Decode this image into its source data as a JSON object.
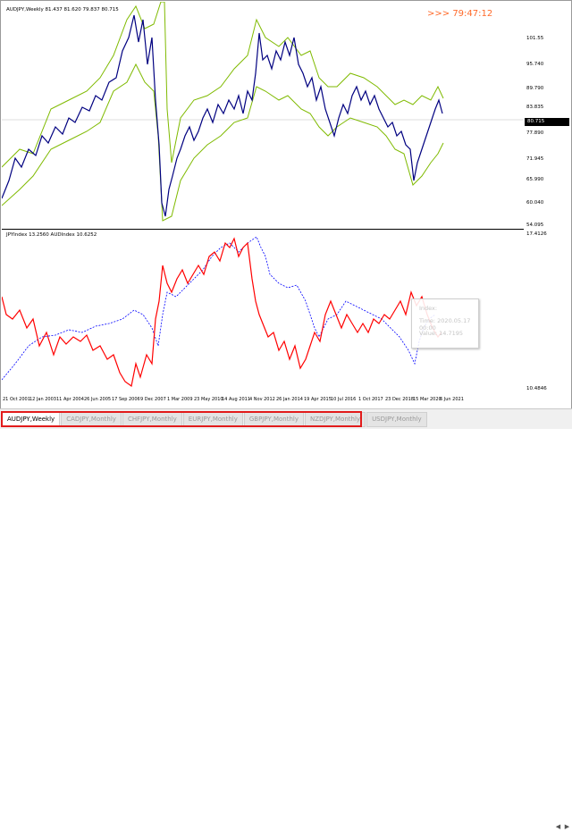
{
  "main_chart": {
    "title": "AUDJPY,Weekly  81.437 81.620 79.837 80.715",
    "timer": ">>> 79:47:12",
    "price_labels": [
      "101.55",
      "95.740",
      "89.790",
      "83.835",
      "77.890",
      "71.945",
      "65.990",
      "60.040",
      "54.095"
    ],
    "current_price": "80.715"
  },
  "indicator": {
    "title": "JPYIndex 13.2560  AUDIndex 10.6252",
    "labels": [
      "17.4126",
      "10.4846"
    ]
  },
  "dates": [
    "21 Oct 2001",
    "12 Jan 2003",
    "11 Apr 2004",
    "26 Jun 2005",
    "17 Sep 2006",
    "9 Dec 2007",
    "1 Mar 2009",
    "23 May 2010",
    "14 Aug 2011",
    "4 Nov 2012",
    "26 Jan 2014",
    "19 Apr 2015",
    "10 Jul 2016",
    "1 Oct 2017",
    "23 Dec 2018",
    "15 Mar 2020",
    "6 Jun 2021"
  ],
  "tooltip": {
    "index_label": "Index:",
    "time": "Time: 2020.05.17 00:00",
    "value": "Value: 14.7195"
  },
  "tabs": [
    "AUDJPY,Weekly",
    "CADJPY,Monthly",
    "CHFJPY,Monthly",
    "EURJPY,Monthly",
    "GBPJPY,Monthly",
    "NZDJPY,Monthly",
    "USDJPY,Monthly"
  ],
  "colors": {
    "price": "#000080",
    "bands": "#7fba00",
    "jpy_index": "#ff0000",
    "aud_index": "#0000ff",
    "highlight": "#e21b1b",
    "timer": "#ff6a2a"
  }
}
